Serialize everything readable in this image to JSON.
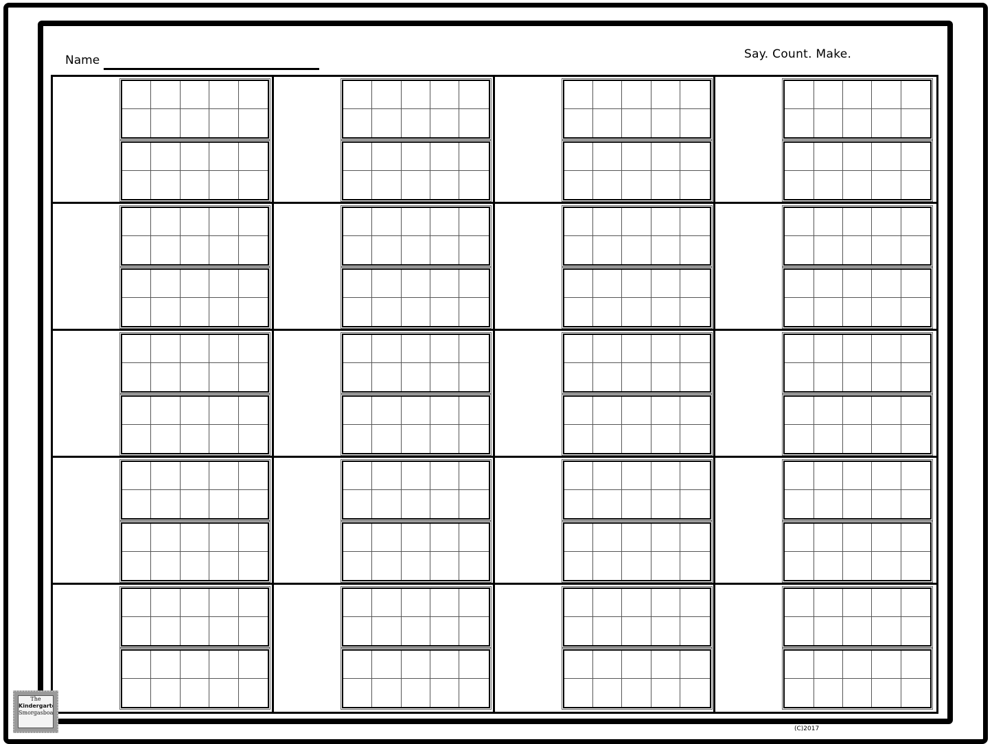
{
  "header": {
    "name_label": "Name",
    "title": "Say.  Count.  Make."
  },
  "worksheet": {
    "rows": 5,
    "cols": 4,
    "ten_frames_per_cell": 2
  },
  "logo": {
    "line1": "The",
    "line2": "Kindergarten",
    "line3": "Smorgasboard"
  },
  "footer": {
    "copyright": "(C)2017"
  }
}
